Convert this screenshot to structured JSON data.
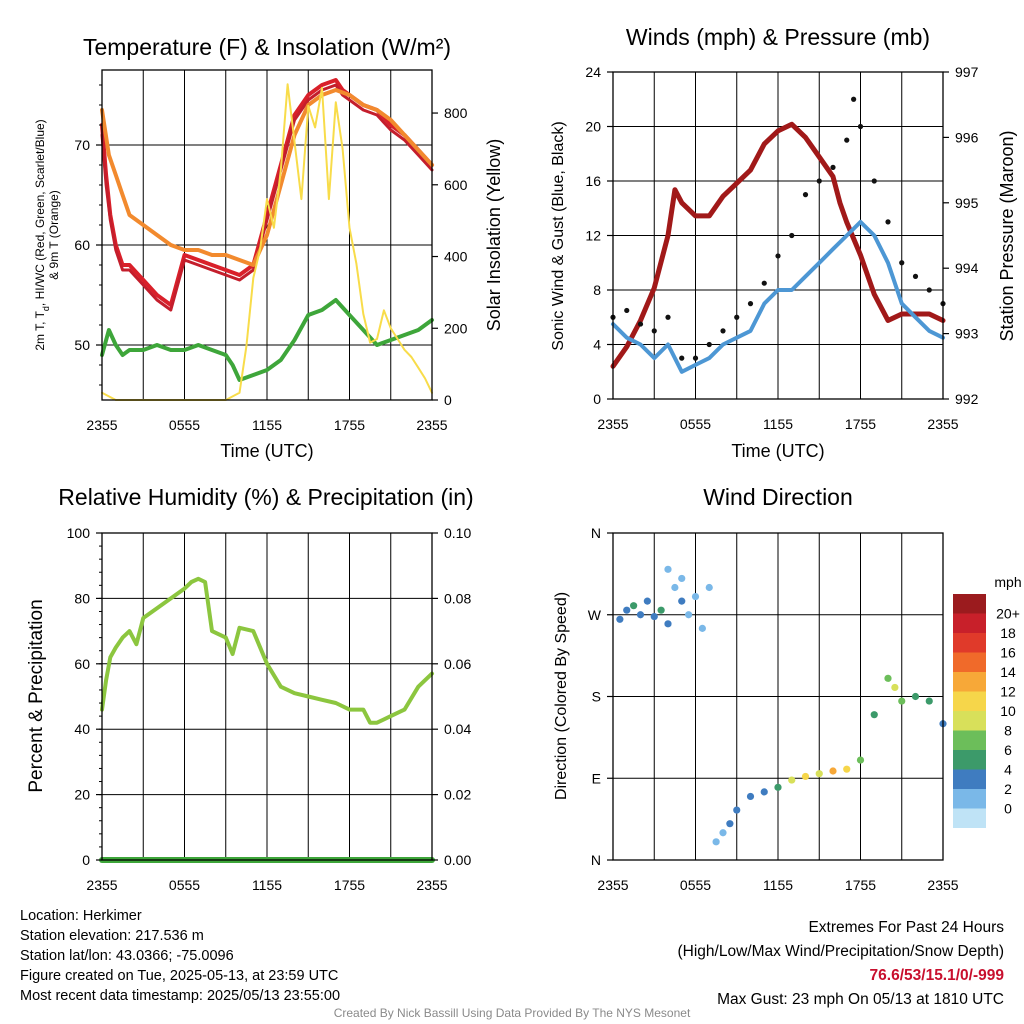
{
  "colors": {
    "temp_red": "#d9202a",
    "dewpoint_green": "#3ea63a",
    "temp9m_orange": "#f28a2e",
    "insolation_yellow": "#f8dc4a",
    "wind_blue": "#4d97d4",
    "gust_black": "#111111",
    "pressure_maroon": "#a11919",
    "humidity_green": "#8cc63f",
    "precip_green": "#3ea63a",
    "extremes_red": "#c8102e",
    "credit_gray": "#8a8a8a"
  },
  "info": {
    "location": "Location: Herkimer",
    "elevation": "Station elevation: 217.536 m",
    "latlon": "Station lat/lon: 43.0366; -75.0096",
    "created": "Figure created on Tue, 2025-05-13, at 23:59 UTC",
    "recent": "Most recent data timestamp: 2025/05/13 23:55:00",
    "extremes_title": "Extremes For Past 24 Hours",
    "extremes_sub": "(High/Low/Max Wind/Precipitation/Snow Depth)",
    "extremes_values": "76.6/53/15.1/0/-999",
    "max_gust": "Max Gust: 23 mph On 05/13 at 1810 UTC",
    "credit": "Created By Nick Bassill Using Data Provided By The NYS Mesonet"
  },
  "chart_data": [
    {
      "type": "line",
      "title": "Temperature (F) & Insolation (W/m²)",
      "xlabel": "Time (UTC)",
      "ylabel": "2m T, T_d, HI/WC (Red, Green, Scarlet/Blue) & 9m T (Orange)",
      "ylabel_line1": "2m T, T",
      "ylabel_sub": "d",
      "ylabel_line1_rest": ", HI/WC (Red, Green, Scarlet/Blue)",
      "ylabel_line2": "& 9m T (Orange)",
      "y2label": "Solar Insolation (Yellow)",
      "x_ticks": [
        "2355",
        "0555",
        "1155",
        "1755",
        "2355"
      ],
      "xlim": [
        0,
        24
      ],
      "ylim": [
        44.5,
        77.5
      ],
      "y_ticks": [
        50,
        60,
        70
      ],
      "y2lim": [
        0,
        920
      ],
      "y2_ticks": [
        0,
        200,
        400,
        600,
        800
      ],
      "grid": true,
      "series": [
        {
          "key": "red",
          "x": [
            0,
            0.3,
            0.6,
            1,
            1.5,
            2,
            3,
            4,
            5,
            6,
            7,
            8,
            9,
            10,
            11,
            12,
            13,
            14,
            15,
            16,
            17,
            17.5,
            18,
            19,
            20,
            21,
            22,
            23,
            24
          ],
          "y": [
            72,
            67,
            63,
            60,
            58,
            58,
            56.5,
            55,
            54,
            59,
            58.5,
            58,
            57.5,
            57,
            58,
            63,
            68,
            73,
            75,
            76,
            76.5,
            75.5,
            75,
            74,
            73.5,
            72,
            71,
            69.5,
            68
          ]
        },
        {
          "key": "scarlet",
          "x": [
            0,
            0.3,
            0.6,
            1,
            1.5,
            2,
            3,
            4,
            5,
            6,
            7,
            8,
            9,
            10,
            11,
            12,
            13,
            14,
            15,
            16,
            17,
            17.5,
            18,
            19,
            20,
            21,
            22,
            23,
            24
          ],
          "y": [
            71,
            66,
            62.5,
            59.5,
            57.5,
            57.5,
            56,
            54.5,
            53.5,
            58.5,
            58,
            57.5,
            57,
            56.5,
            57.5,
            62.5,
            67.5,
            72.5,
            74.5,
            75.5,
            76,
            75,
            74.5,
            73.5,
            73,
            71.5,
            70.5,
            69,
            67.5
          ]
        },
        {
          "key": "orange",
          "x": [
            0,
            0.5,
            1,
            1.5,
            2,
            3,
            4,
            5,
            6,
            7,
            8,
            9,
            10,
            11,
            12,
            13,
            14,
            15,
            16,
            17,
            18,
            19,
            20,
            21,
            22,
            23,
            24
          ],
          "y": [
            73.5,
            69,
            67,
            65,
            63,
            62,
            61,
            60,
            59.5,
            59.5,
            59,
            59,
            58.5,
            58,
            61,
            66,
            71,
            74,
            75,
            75.5,
            75,
            74,
            73.5,
            72.5,
            71,
            69.5,
            68
          ]
        },
        {
          "key": "green",
          "x": [
            0,
            0.5,
            1,
            1.5,
            2,
            3,
            4,
            5,
            6,
            7,
            8,
            9,
            9.5,
            10,
            11,
            12,
            13,
            14,
            15,
            16,
            17,
            18,
            19,
            20,
            21,
            22,
            23,
            24
          ],
          "y": [
            49,
            51.5,
            50,
            49,
            49.5,
            49.5,
            50,
            49.5,
            49.5,
            50,
            49.5,
            49,
            48,
            46.5,
            47,
            47.5,
            48.5,
            50.5,
            53,
            53.5,
            54.5,
            53,
            51.5,
            50,
            50.5,
            51,
            51.5,
            52.5
          ]
        },
        {
          "key": "yellow",
          "x": [
            0,
            1,
            2,
            4,
            6,
            8,
            9,
            10,
            10.5,
            11,
            11.5,
            12,
            12.5,
            13,
            13.5,
            14,
            14.5,
            15,
            15.5,
            16,
            16.5,
            17,
            17.5,
            18,
            18.5,
            19,
            19.5,
            20,
            20.5,
            21,
            21.5,
            22,
            22.5,
            23,
            23.5,
            24
          ],
          "y": [
            20,
            0,
            0,
            0,
            0,
            0,
            0,
            20,
            150,
            340,
            420,
            560,
            480,
            640,
            880,
            720,
            560,
            820,
            760,
            870,
            560,
            830,
            700,
            480,
            380,
            240,
            160,
            170,
            250,
            200,
            170,
            140,
            120,
            90,
            60,
            20
          ]
        }
      ]
    },
    {
      "type": "line",
      "title": "Winds (mph) & Pressure (mb)",
      "xlabel": "Time (UTC)",
      "ylabel": "Sonic Wind & Gust (Blue, Black)",
      "y2label": "Station Pressure (Maroon)",
      "x_ticks": [
        "2355",
        "0555",
        "1155",
        "1755",
        "2355"
      ],
      "xlim": [
        0,
        24
      ],
      "ylim": [
        0,
        24
      ],
      "y_ticks": [
        0,
        4,
        8,
        12,
        16,
        20,
        24
      ],
      "y2lim": [
        992,
        997
      ],
      "y2_ticks": [
        992,
        993,
        994,
        995,
        996,
        997
      ],
      "grid": true,
      "series": [
        {
          "key": "pressure",
          "x": [
            0,
            1,
            2,
            3,
            4,
            4.5,
            5,
            6,
            7,
            8,
            9,
            10,
            11,
            12,
            13,
            14,
            15,
            16,
            16.5,
            17,
            18,
            19,
            20,
            21,
            22,
            23,
            24
          ],
          "y": [
            992.5,
            992.8,
            993.2,
            993.7,
            994.5,
            995.2,
            995.0,
            994.8,
            994.8,
            995.1,
            995.3,
            995.5,
            995.9,
            996.1,
            996.2,
            996.0,
            995.7,
            995.4,
            995.0,
            994.7,
            994.2,
            993.6,
            993.2,
            993.3,
            993.3,
            993.3,
            993.2
          ]
        },
        {
          "key": "sonic",
          "x": [
            0,
            1,
            2,
            3,
            4,
            5,
            6,
            7,
            8,
            9,
            10,
            11,
            12,
            13,
            14,
            15,
            16,
            17,
            18,
            19,
            20,
            21,
            22,
            23,
            24
          ],
          "y": [
            5.5,
            4.5,
            4,
            3,
            4,
            2,
            2.5,
            3,
            4,
            4.5,
            5,
            7,
            8,
            8,
            9,
            10,
            11,
            12,
            13,
            12,
            10,
            7,
            6,
            5,
            4.5
          ]
        },
        {
          "key": "gust",
          "x": [
            0,
            1,
            2,
            3,
            4,
            5,
            6,
            7,
            8,
            9,
            10,
            11,
            12,
            13,
            14,
            15,
            16,
            17,
            17.5,
            18,
            19,
            20,
            21,
            22,
            23,
            24
          ],
          "y": [
            6,
            6.5,
            5.5,
            5,
            6,
            3,
            3,
            4,
            5,
            6,
            7,
            8.5,
            10.5,
            12,
            15,
            16,
            17,
            19,
            22,
            20,
            16,
            13,
            10,
            9,
            8,
            7
          ]
        }
      ]
    },
    {
      "type": "line",
      "title": "Relative Humidity (%) & Precipitation (in)",
      "ylabel": "Percent & Precipitation",
      "x_ticks": [
        "2355",
        "0555",
        "1155",
        "1755",
        "2355"
      ],
      "xlim": [
        0,
        24
      ],
      "ylim": [
        0,
        100
      ],
      "y_ticks": [
        0,
        20,
        40,
        60,
        80,
        100
      ],
      "y2lim": [
        0,
        0.1
      ],
      "y2_ticks": [
        "0.00",
        "0.02",
        "0.04",
        "0.06",
        "0.08",
        "0.10"
      ],
      "grid": true,
      "series": [
        {
          "key": "rh",
          "x": [
            0,
            0.3,
            0.6,
            1,
            1.5,
            2,
            2.5,
            3,
            4,
            5,
            6,
            6.5,
            7,
            7.5,
            8,
            9,
            9.5,
            10,
            11,
            12,
            13,
            14,
            15,
            16,
            17,
            18,
            19,
            19.5,
            20,
            21,
            22,
            23,
            24
          ],
          "y": [
            46,
            55,
            62,
            65,
            68,
            70,
            66,
            74,
            77,
            80,
            83,
            85,
            86,
            85,
            70,
            68,
            63,
            71,
            70,
            60,
            53,
            51,
            50,
            49,
            48,
            46,
            46,
            42,
            42,
            44,
            46,
            53,
            57
          ]
        },
        {
          "key": "precip",
          "x": [
            0,
            24
          ],
          "y": [
            0,
            0
          ]
        }
      ]
    },
    {
      "type": "scatter",
      "title": "Wind Direction",
      "ylabel": "Direction (Colored By Speed)",
      "x_ticks": [
        "2355",
        "0555",
        "1155",
        "1755",
        "2355"
      ],
      "xlim": [
        0,
        24
      ],
      "ylim": [
        0,
        360
      ],
      "y_ticks": [
        "N",
        "E",
        "S",
        "W",
        "N"
      ],
      "grid": true,
      "legend": {
        "title": "mph",
        "labels": [
          "20+",
          "18",
          "16",
          "14",
          "12",
          "10",
          "8",
          "6",
          "4",
          "2",
          "0"
        ],
        "colors": [
          "#9b1b1e",
          "#c8202a",
          "#e03a2a",
          "#f06a2a",
          "#f7a838",
          "#f6d64a",
          "#d8e05a",
          "#6cbe5a",
          "#3c9a6a",
          "#3f7cc0",
          "#7ab8e8",
          "#bfe3f6"
        ]
      },
      "points": [
        {
          "x": 0.5,
          "y": 265,
          "s": 4
        },
        {
          "x": 1,
          "y": 275,
          "s": 4
        },
        {
          "x": 1.5,
          "y": 280,
          "s": 6
        },
        {
          "x": 2,
          "y": 270,
          "s": 3
        },
        {
          "x": 2.5,
          "y": 285,
          "s": 4
        },
        {
          "x": 3,
          "y": 268,
          "s": 4
        },
        {
          "x": 3.5,
          "y": 275,
          "s": 5
        },
        {
          "x": 4,
          "y": 260,
          "s": 4
        },
        {
          "x": 4.5,
          "y": 300,
          "s": 2
        },
        {
          "x": 5,
          "y": 285,
          "s": 3
        },
        {
          "x": 5.5,
          "y": 270,
          "s": 2
        },
        {
          "x": 6,
          "y": 290,
          "s": 1
        },
        {
          "x": 6.5,
          "y": 255,
          "s": 1
        },
        {
          "x": 7,
          "y": 300,
          "s": 1
        },
        {
          "x": 4,
          "y": 320,
          "s": 1
        },
        {
          "x": 5,
          "y": 310,
          "s": 2
        },
        {
          "x": 7.5,
          "y": 20,
          "s": 2
        },
        {
          "x": 8,
          "y": 30,
          "s": 2
        },
        {
          "x": 8.5,
          "y": 40,
          "s": 3
        },
        {
          "x": 9,
          "y": 55,
          "s": 3
        },
        {
          "x": 10,
          "y": 70,
          "s": 4
        },
        {
          "x": 11,
          "y": 75,
          "s": 4
        },
        {
          "x": 12,
          "y": 80,
          "s": 6
        },
        {
          "x": 13,
          "y": 88,
          "s": 10
        },
        {
          "x": 14,
          "y": 92,
          "s": 12
        },
        {
          "x": 15,
          "y": 95,
          "s": 10
        },
        {
          "x": 16,
          "y": 98,
          "s": 14
        },
        {
          "x": 17,
          "y": 100,
          "s": 12
        },
        {
          "x": 18,
          "y": 110,
          "s": 8
        },
        {
          "x": 19,
          "y": 160,
          "s": 6
        },
        {
          "x": 20,
          "y": 200,
          "s": 8
        },
        {
          "x": 20.5,
          "y": 190,
          "s": 10
        },
        {
          "x": 21,
          "y": 175,
          "s": 8
        },
        {
          "x": 22,
          "y": 180,
          "s": 6
        },
        {
          "x": 23,
          "y": 175,
          "s": 6
        },
        {
          "x": 24,
          "y": 150,
          "s": 4
        }
      ]
    }
  ]
}
